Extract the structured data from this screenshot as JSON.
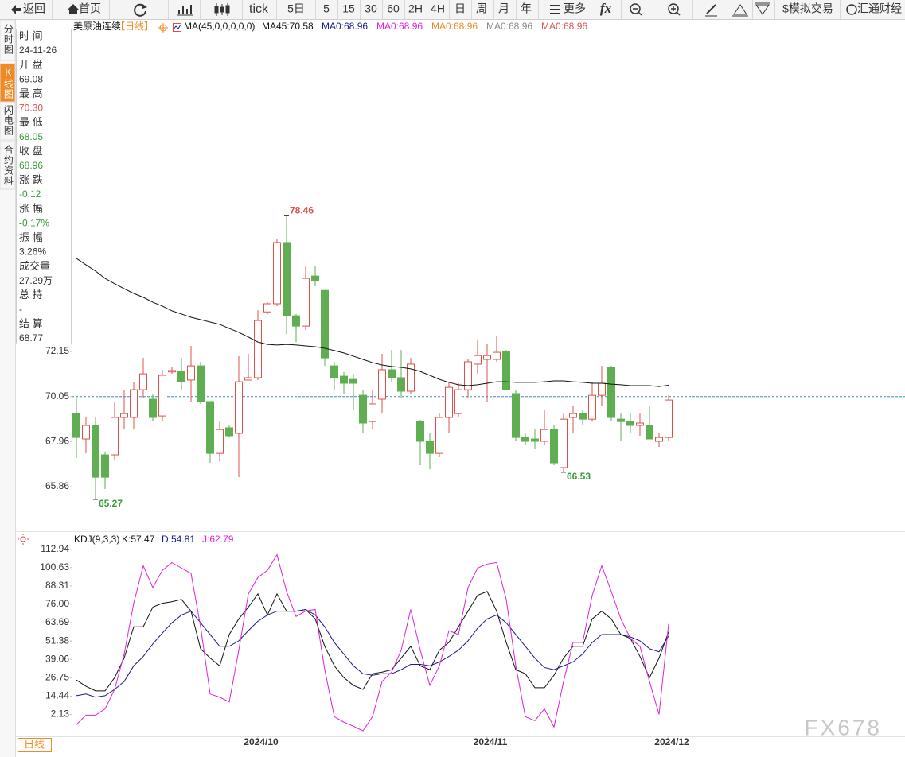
{
  "toolbar": [
    "返回",
    "首页",
    "tick",
    "5日",
    "5",
    "15",
    "30",
    "60",
    "2H",
    "4H",
    "日",
    "周",
    "月",
    "年",
    "更多",
    "fx",
    "$模拟交易",
    "汇通财经"
  ],
  "sidebar": [
    "分时图",
    "K线图",
    "闪电图",
    "合约资料"
  ],
  "info_panel": [
    {
      "label": "时 间",
      "value": "24-11-26",
      "color": "#333"
    },
    {
      "label": "开 盘",
      "value": "69.08",
      "color": "#333"
    },
    {
      "label": "最 高",
      "value": "70.30",
      "color": "#d9534f"
    },
    {
      "label": "最 低",
      "value": "68.05",
      "color": "#3a9a3a"
    },
    {
      "label": "收 盘",
      "value": "68.96",
      "color": "#3a9a3a"
    },
    {
      "label": "涨 跌",
      "value": "-0.12",
      "color": "#3a9a3a"
    },
    {
      "label": "涨 幅",
      "value": "-0.17%",
      "color": "#3a9a3a"
    },
    {
      "label": "振 幅",
      "value": "3.26%",
      "color": "#333"
    },
    {
      "label": "成交量",
      "value": "27.29万",
      "color": "#333"
    },
    {
      "label": "总 持",
      "value": "-",
      "color": "#333"
    },
    {
      "label": "结 算",
      "value": "68.77",
      "color": "#333"
    }
  ],
  "bottom_tabs": [
    "日线"
  ],
  "watermark": "FX678",
  "chart_data": [
    {
      "type": "candlestick",
      "title": "美原油连续",
      "period": "【日线】",
      "indicator": "MA(45,0,0,0,0,0)",
      "up_color": "#e0504a",
      "down_color": "#5fae52",
      "ylim": [
        63.79,
        87.02
      ],
      "yticks": [
        72.15,
        70.05,
        67.96,
        65.86
      ],
      "open": [
        69.26,
        68.08,
        68.71,
        67.34,
        67.34,
        69.08,
        69.08,
        70.37,
        69.93,
        69.15,
        71.2,
        71.22,
        70.82,
        71.48,
        69.82,
        67.41,
        68.6,
        68.34,
        70.82,
        70.93,
        73.99,
        74.37,
        77.22,
        73.81,
        73.33,
        75.66,
        74.99,
        71.48,
        71.0,
        70.85,
        70.11,
        68.89,
        69.93,
        71.3,
        70.93,
        70.3,
        68.89,
        67.97,
        67.41,
        69.08,
        69.26,
        70.37,
        71.56,
        71.78,
        71.78,
        72.15,
        70.19,
        68.15,
        68.08,
        67.97,
        68.52,
        66.75,
        69.08,
        69.26,
        69.0,
        70.11,
        71.41,
        69.0,
        68.89,
        68.71,
        68.71,
        67.97,
        68.15
      ],
      "high": [
        70.0,
        69.08,
        69.08,
        67.5,
        69.82,
        70.37,
        70.74,
        71.85,
        70.19,
        71.3,
        71.41,
        71.85,
        72.41,
        71.67,
        69.82,
        68.89,
        68.71,
        71.93,
        72.04,
        74.07,
        74.44,
        77.4,
        78.46,
        73.89,
        76.11,
        76.11,
        74.99,
        71.67,
        71.19,
        71.11,
        70.37,
        70.37,
        72.04,
        72.22,
        72.22,
        71.85,
        68.97,
        68.34,
        69.26,
        70.74,
        70.67,
        71.78,
        72.67,
        72.52,
        72.89,
        72.22,
        70.37,
        68.34,
        68.52,
        69.45,
        68.71,
        69.26,
        69.63,
        69.45,
        70.74,
        71.48,
        71.48,
        69.26,
        69.26,
        69.26,
        69.63,
        68.34,
        70.11
      ],
      "low": [
        67.2,
        67.41,
        65.27,
        65.75,
        67.12,
        68.52,
        68.52,
        70.0,
        68.89,
        68.89,
        71.11,
        70.37,
        69.82,
        69.71,
        66.97,
        67.04,
        68.15,
        66.3,
        70.82,
        70.82,
        73.89,
        74.26,
        72.96,
        72.59,
        73.15,
        75.18,
        71.48,
        70.37,
        70.19,
        69.45,
        68.34,
        68.52,
        69.26,
        70.74,
        70.0,
        70.19,
        66.86,
        66.67,
        67.23,
        68.34,
        69.08,
        70.0,
        71.11,
        69.82,
        71.67,
        70.37,
        67.97,
        67.78,
        67.6,
        67.78,
        66.86,
        66.53,
        68.34,
        68.71,
        68.89,
        69.63,
        68.89,
        67.97,
        68.34,
        68.23,
        68.08,
        67.71,
        67.97
      ],
      "close": [
        68.15,
        68.71,
        66.3,
        66.3,
        69.08,
        69.26,
        70.37,
        71.11,
        69.08,
        71.04,
        71.26,
        70.74,
        71.48,
        69.82,
        67.41,
        68.52,
        68.23,
        70.74,
        70.93,
        73.59,
        74.37,
        77.22,
        73.81,
        73.33,
        75.55,
        75.44,
        71.85,
        70.93,
        70.67,
        70.67,
        68.82,
        69.71,
        71.3,
        70.93,
        70.3,
        71.56,
        67.97,
        67.41,
        69.08,
        70.48,
        70.37,
        71.67,
        71.96,
        71.96,
        72.11,
        70.37,
        68.15,
        67.97,
        67.97,
        68.52,
        66.97,
        69.0,
        69.26,
        69.0,
        70.11,
        70.67,
        69.08,
        68.89,
        68.71,
        68.82,
        68.08,
        68.15,
        69.89
      ],
      "series": [
        {
          "name": "MA45:70.58",
          "color": "#111111",
          "values": [
            76.48,
            76.18,
            75.89,
            75.55,
            75.3,
            75.07,
            74.85,
            74.67,
            74.44,
            74.26,
            74.04,
            73.89,
            73.74,
            73.63,
            73.52,
            73.41,
            73.22,
            73.04,
            72.82,
            72.59,
            72.48,
            72.45,
            72.48,
            72.45,
            72.41,
            72.37,
            72.3,
            72.19,
            72.08,
            71.93,
            71.78,
            71.63,
            71.52,
            71.45,
            71.41,
            71.34,
            71.22,
            71.04,
            70.85,
            70.71,
            70.6,
            70.56,
            70.6,
            70.67,
            70.74,
            70.74,
            70.71,
            70.71,
            70.71,
            70.74,
            70.78,
            70.78,
            70.74,
            70.71,
            70.67,
            70.67,
            70.63,
            70.6,
            70.56,
            70.56,
            70.56,
            70.52,
            70.58
          ]
        }
      ],
      "extra_legend": [
        {
          "text": "MA0:68.96",
          "color": "#1a1a8c"
        },
        {
          "text": "MA0:68.96",
          "color": "#e020e0"
        },
        {
          "text": "MA0:68.96",
          "color": "#f08a24"
        },
        {
          "text": "MA0:68.96",
          "color": "#888888"
        },
        {
          "text": "MA0:68.96",
          "color": "#d9534f"
        }
      ],
      "annotations": [
        {
          "text": "78.46",
          "color": "#d9534f"
        },
        {
          "text": "65.27",
          "color": "#3a9a3a"
        },
        {
          "text": "66.53",
          "color": "#3a9a3a"
        }
      ]
    },
    {
      "type": "line",
      "title": "KDJ(9,3,3)",
      "ylim": [
        -12.57,
        123.97
      ],
      "yticks": [
        112.94,
        100.63,
        88.31,
        {
          "value": 76,
          "label": "76.00"
        },
        63.69,
        51.38,
        39.06,
        26.75,
        14.44,
        2.13
      ],
      "categories": [
        null,
        null,
        null,
        null,
        null,
        null,
        null,
        null,
        null,
        null,
        null,
        null,
        null,
        null,
        null,
        null,
        null,
        null,
        null,
        "2024/10",
        null,
        null,
        null,
        null,
        null,
        null,
        null,
        null,
        null,
        null,
        null,
        null,
        null,
        null,
        null,
        null,
        null,
        null,
        null,
        null,
        null,
        null,
        null,
        "2024/11",
        null,
        null,
        null,
        null,
        null,
        null,
        null,
        null,
        null,
        null,
        null,
        null,
        null,
        null,
        null,
        null,
        null,
        null,
        "2024/12"
      ],
      "series": [
        {
          "name": "K:57.47",
          "color": "#111111",
          "values": [
            25.2,
            21.0,
            17.9,
            17.9,
            26.8,
            39.9,
            60.9,
            60.9,
            74.1,
            76.7,
            77.7,
            79.3,
            71.4,
            46.2,
            39.9,
            34.7,
            55.7,
            66.2,
            74.1,
            83.0,
            68.8,
            83.0,
            71.4,
            71.4,
            72.5,
            66.2,
            47.8,
            34.7,
            26.8,
            21.6,
            18.9,
            29.4,
            30.5,
            32.1,
            39.9,
            47.8,
            34.7,
            32.1,
            45.2,
            50.4,
            60.9,
            71.4,
            82.0,
            84.6,
            71.4,
            50.4,
            32.1,
            29.4,
            20.0,
            20.0,
            28.4,
            39.9,
            47.8,
            47.8,
            66.2,
            71.4,
            66.2,
            55.7,
            53.1,
            41.0,
            26.8,
            39.9,
            57.47
          ]
        },
        {
          "name": "D:54.81",
          "color": "#1a1a8c",
          "values": [
            14.7,
            15.8,
            13.7,
            14.7,
            18.9,
            24.2,
            34.7,
            41.0,
            49.4,
            56.7,
            63.6,
            68.8,
            71.4,
            63.6,
            55.7,
            47.8,
            47.8,
            51.5,
            58.3,
            64.6,
            68.8,
            71.4,
            71.4,
            71.4,
            72.5,
            68.8,
            60.9,
            50.4,
            42.6,
            34.7,
            29.4,
            28.4,
            29.4,
            29.4,
            32.1,
            35.7,
            35.7,
            34.7,
            37.3,
            41.0,
            45.2,
            51.5,
            59.9,
            66.2,
            68.8,
            63.6,
            55.7,
            47.8,
            39.9,
            33.6,
            32.1,
            34.7,
            37.3,
            42.6,
            50.4,
            55.7,
            55.7,
            55.7,
            54.1,
            51.5,
            46.2,
            44.1,
            54.81
          ]
        },
        {
          "name": "J:62.79",
          "color": "#e020e0",
          "values": [
            -4.7,
            1.6,
            1.6,
            5.8,
            18.9,
            42.6,
            76.7,
            101.9,
            87.2,
            98.8,
            104.0,
            100.3,
            96.7,
            61.0,
            15.8,
            13.7,
            10.5,
            45.2,
            83.0,
            94.0,
            98.8,
            109.3,
            84.6,
            67.8,
            71.5,
            72.5,
            32.1,
            0.6,
            -3.1,
            -5.8,
            -8.9,
            0.6,
            24.2,
            30.5,
            45.2,
            72.5,
            45.2,
            21.6,
            34.7,
            58.3,
            55.7,
            87.2,
            100.3,
            103.0,
            104.0,
            79.3,
            34.7,
            0.6,
            -2.1,
            5.8,
            -6.3,
            24.2,
            50.4,
            50.4,
            81.9,
            101.9,
            84.6,
            66.2,
            53.1,
            47.8,
            24.2,
            2.1,
            62.79
          ]
        }
      ]
    }
  ]
}
